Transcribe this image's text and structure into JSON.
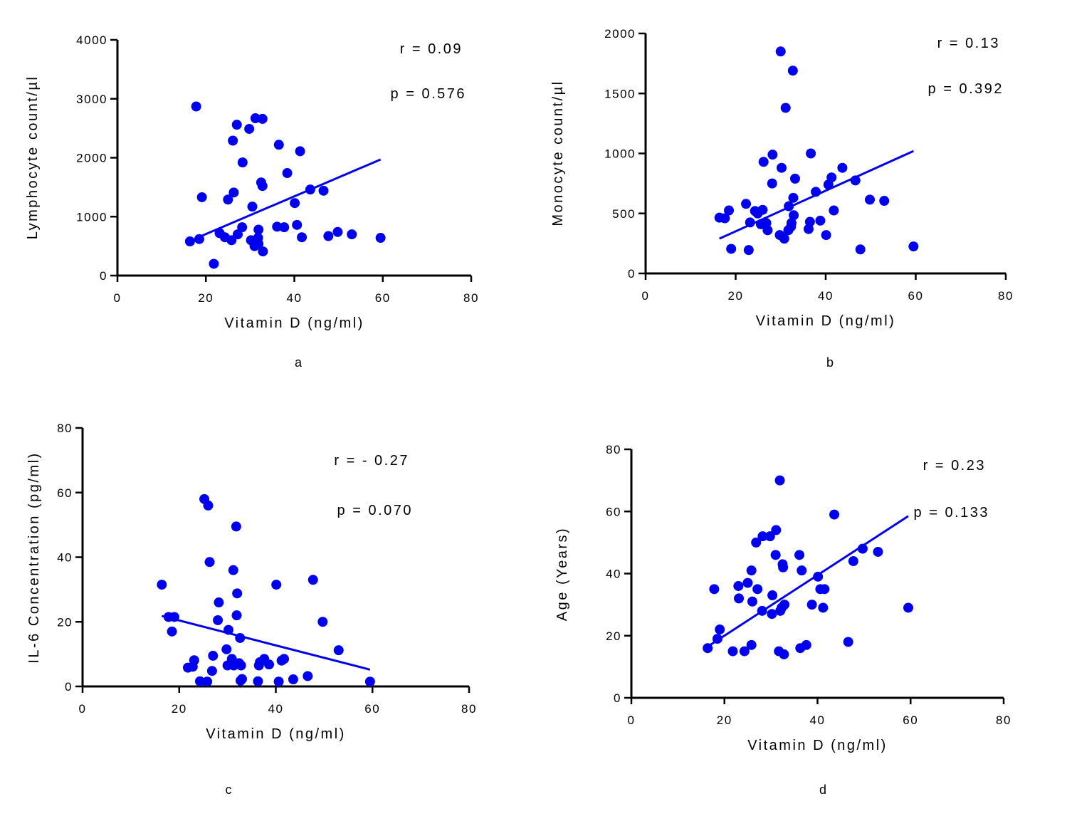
{
  "chart_data": [
    {
      "type": "scatter",
      "panel_label": "a",
      "xlabel": "Vitamin D (ng/ml)",
      "ylabel": "Lymphocyte count/µl",
      "xlim": [
        0,
        80
      ],
      "ylim": [
        0,
        4000
      ],
      "xticks": [
        "0",
        "20",
        "40",
        "60",
        "80"
      ],
      "yticks": [
        "0",
        "1000",
        "2000",
        "3000",
        "4000"
      ],
      "r_text": "r = 0.09",
      "p_text": "p = 0.576",
      "marker_color": "#0000ee",
      "grid": false,
      "regression": {
        "x": [
          18,
          59.5
        ],
        "y": [
          640,
          1970
        ]
      },
      "points": [
        [
          16.4,
          580
        ],
        [
          18.5,
          620
        ],
        [
          17.8,
          2870
        ],
        [
          19.1,
          1330
        ],
        [
          21.8,
          200
        ],
        [
          23.1,
          720
        ],
        [
          24.3,
          650
        ],
        [
          25.0,
          1290
        ],
        [
          25.8,
          600
        ],
        [
          26.1,
          2290
        ],
        [
          26.3,
          1410
        ],
        [
          27.2,
          700
        ],
        [
          27.0,
          2560
        ],
        [
          28.2,
          820
        ],
        [
          28.3,
          1920
        ],
        [
          29.8,
          2490
        ],
        [
          30.2,
          600
        ],
        [
          30.5,
          1170
        ],
        [
          31.0,
          500
        ],
        [
          31.2,
          2670
        ],
        [
          31.9,
          540
        ],
        [
          31.8,
          640
        ],
        [
          31.9,
          780
        ],
        [
          32.5,
          1580
        ],
        [
          32.8,
          1520
        ],
        [
          32.8,
          2660
        ],
        [
          32.9,
          410
        ],
        [
          36.1,
          830
        ],
        [
          36.5,
          2220
        ],
        [
          37.7,
          820
        ],
        [
          38.4,
          1740
        ],
        [
          40.1,
          1230
        ],
        [
          40.6,
          860
        ],
        [
          41.3,
          2110
        ],
        [
          41.7,
          650
        ],
        [
          43.6,
          1460
        ],
        [
          46.6,
          1440
        ],
        [
          47.7,
          670
        ],
        [
          49.8,
          740
        ],
        [
          53.0,
          700
        ],
        [
          59.5,
          640
        ]
      ]
    },
    {
      "type": "scatter",
      "panel_label": "b",
      "xlabel": "Vitamin D (ng/ml)",
      "ylabel": "Monocyte count/µl",
      "xlim": [
        0,
        80
      ],
      "ylim": [
        0,
        2000
      ],
      "xticks": [
        "0",
        "20",
        "40",
        "60",
        "80"
      ],
      "yticks": [
        "0",
        "500",
        "1000",
        "1500",
        "2000"
      ],
      "r_text": "r = 0.13",
      "p_text": "p = 0.392",
      "marker_color": "#0000ee",
      "grid": false,
      "regression": {
        "x": [
          16.4,
          59.5
        ],
        "y": [
          290,
          1020
        ]
      },
      "points": [
        [
          16.4,
          465
        ],
        [
          17.6,
          460
        ],
        [
          18.5,
          525
        ],
        [
          19.0,
          205
        ],
        [
          22.3,
          580
        ],
        [
          22.9,
          195
        ],
        [
          23.2,
          425
        ],
        [
          24.3,
          520
        ],
        [
          24.9,
          500
        ],
        [
          25.6,
          410
        ],
        [
          26.0,
          530
        ],
        [
          26.2,
          930
        ],
        [
          26.8,
          420
        ],
        [
          27.1,
          360
        ],
        [
          28.1,
          750
        ],
        [
          28.2,
          990
        ],
        [
          29.8,
          320
        ],
        [
          30.0,
          1850
        ],
        [
          30.2,
          880
        ],
        [
          30.8,
          290
        ],
        [
          31.1,
          1380
        ],
        [
          31.7,
          360
        ],
        [
          31.8,
          560
        ],
        [
          32.3,
          390
        ],
        [
          32.4,
          420
        ],
        [
          32.7,
          1690
        ],
        [
          32.8,
          630
        ],
        [
          32.9,
          485
        ],
        [
          33.2,
          790
        ],
        [
          36.2,
          370
        ],
        [
          36.5,
          430
        ],
        [
          36.7,
          1000
        ],
        [
          37.8,
          680
        ],
        [
          38.8,
          440
        ],
        [
          40.1,
          320
        ],
        [
          40.6,
          740
        ],
        [
          41.3,
          800
        ],
        [
          41.8,
          525
        ],
        [
          43.7,
          880
        ],
        [
          46.6,
          775
        ],
        [
          47.7,
          200
        ],
        [
          49.8,
          615
        ],
        [
          53.0,
          605
        ],
        [
          59.5,
          225
        ]
      ]
    },
    {
      "type": "scatter",
      "panel_label": "c",
      "xlabel": "Vitamin D (ng/ml)",
      "ylabel": "IL-6 Concentration (pg/ml)",
      "xlim": [
        0,
        80
      ],
      "ylim": [
        0,
        80
      ],
      "xticks": [
        "0",
        "20",
        "40",
        "60",
        "80"
      ],
      "yticks": [
        "0",
        "20",
        "40",
        "60",
        "80"
      ],
      "r_text": "r = - 0.27",
      "p_text": "p = 0.070",
      "marker_color": "#0000ee",
      "grid": false,
      "regression": {
        "x": [
          16.4,
          59.5
        ],
        "y": [
          21.8,
          5.2
        ]
      },
      "points": [
        [
          16.4,
          31.5
        ],
        [
          17.8,
          21.5
        ],
        [
          18.5,
          17.0
        ],
        [
          19.0,
          21.5
        ],
        [
          21.8,
          5.8
        ],
        [
          22.8,
          6.1
        ],
        [
          23.1,
          8.1
        ],
        [
          24.3,
          1.6
        ],
        [
          25.2,
          58.0
        ],
        [
          25.8,
          1.5
        ],
        [
          26.0,
          56.0
        ],
        [
          26.3,
          38.5
        ],
        [
          26.8,
          4.8
        ],
        [
          27.0,
          9.5
        ],
        [
          28.0,
          20.5
        ],
        [
          28.2,
          26.0
        ],
        [
          29.8,
          11.5
        ],
        [
          30.0,
          6.5
        ],
        [
          30.2,
          17.5
        ],
        [
          30.9,
          8.5
        ],
        [
          31.2,
          36.0
        ],
        [
          31.3,
          6.5
        ],
        [
          31.8,
          49.5
        ],
        [
          31.9,
          22.0
        ],
        [
          32.0,
          28.8
        ],
        [
          32.4,
          7.2
        ],
        [
          32.6,
          15.0
        ],
        [
          32.7,
          1.8
        ],
        [
          32.8,
          6.5
        ],
        [
          33.0,
          2.3
        ],
        [
          36.3,
          1.6
        ],
        [
          36.5,
          6.5
        ],
        [
          36.7,
          7.5
        ],
        [
          37.6,
          8.5
        ],
        [
          38.6,
          6.8
        ],
        [
          40.1,
          31.5
        ],
        [
          40.6,
          1.5
        ],
        [
          41.2,
          8.0
        ],
        [
          41.7,
          8.5
        ],
        [
          43.6,
          2.2
        ],
        [
          46.6,
          3.2
        ],
        [
          47.7,
          33.0
        ],
        [
          49.7,
          20.0
        ],
        [
          53.0,
          11.2
        ],
        [
          59.5,
          1.5
        ]
      ]
    },
    {
      "type": "scatter",
      "panel_label": "d",
      "xlabel": "Vitamin D (ng/ml)",
      "ylabel": "Age (Years)",
      "xlim": [
        0,
        80
      ],
      "ylim": [
        0,
        80
      ],
      "xticks": [
        "0",
        "20",
        "40",
        "60",
        "80"
      ],
      "yticks": [
        "0",
        "20",
        "40",
        "60",
        "80"
      ],
      "r_text": "r = 0.23",
      "p_text": "p = 0.133",
      "marker_color": "#0000ee",
      "grid": false,
      "regression": {
        "x": [
          16.4,
          59.5
        ],
        "y": [
          16.5,
          58.5
        ]
      },
      "points": [
        [
          16.4,
          16.0
        ],
        [
          17.8,
          35.0
        ],
        [
          18.5,
          19.0
        ],
        [
          19.0,
          22.0
        ],
        [
          21.8,
          15.0
        ],
        [
          23.0,
          36.0
        ],
        [
          23.1,
          32.0
        ],
        [
          24.3,
          15.0
        ],
        [
          25.0,
          37.0
        ],
        [
          25.8,
          17.0
        ],
        [
          25.8,
          41.0
        ],
        [
          26.0,
          31.0
        ],
        [
          26.8,
          50.0
        ],
        [
          27.1,
          35.0
        ],
        [
          28.1,
          28.0
        ],
        [
          28.2,
          52.0
        ],
        [
          29.8,
          52.0
        ],
        [
          30.2,
          27.0
        ],
        [
          30.3,
          33.0
        ],
        [
          31.1,
          54.0
        ],
        [
          31.0,
          46.0
        ],
        [
          31.7,
          15.0
        ],
        [
          31.9,
          70.0
        ],
        [
          32.0,
          28.0
        ],
        [
          32.3,
          29.0
        ],
        [
          32.5,
          43.0
        ],
        [
          32.6,
          42.0
        ],
        [
          32.8,
          14.0
        ],
        [
          32.9,
          30.0
        ],
        [
          36.1,
          46.0
        ],
        [
          36.3,
          16.0
        ],
        [
          36.6,
          41.0
        ],
        [
          37.6,
          17.0
        ],
        [
          38.8,
          30.0
        ],
        [
          40.1,
          39.0
        ],
        [
          40.6,
          35.0
        ],
        [
          41.2,
          29.0
        ],
        [
          41.5,
          35.0
        ],
        [
          43.6,
          59.0
        ],
        [
          46.6,
          18.0
        ],
        [
          47.7,
          44.0
        ],
        [
          49.7,
          48.0
        ],
        [
          53.0,
          47.0
        ],
        [
          59.5,
          29.0
        ]
      ]
    }
  ]
}
